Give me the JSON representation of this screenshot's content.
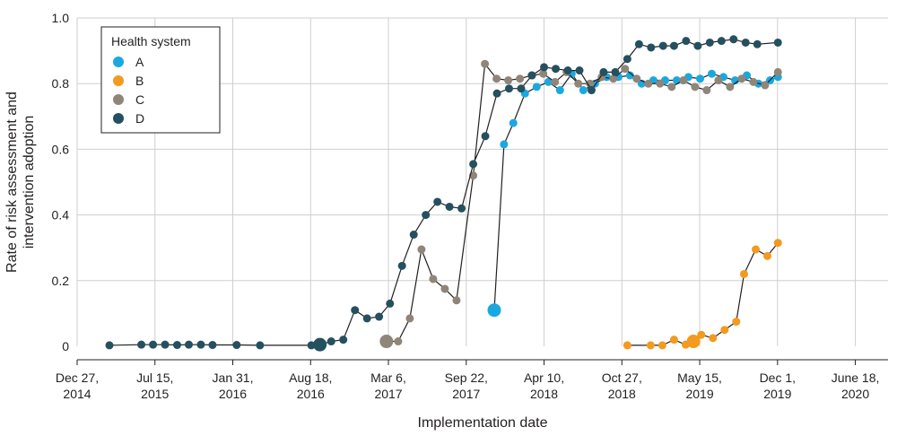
{
  "chart_data": {
    "type": "line",
    "xlabel": "Implementation date",
    "ylabel_lines": [
      "Rate of risk assessment and",
      "intervention adoption"
    ],
    "ylim": [
      0,
      1.0
    ],
    "yticks": [
      "0",
      "0.2",
      "0.4",
      "0.6",
      "0.8",
      "1.0"
    ],
    "yticks_values": [
      0,
      0.2,
      0.4,
      0.6,
      0.8,
      1.0
    ],
    "xlim": [
      "2014-12-27",
      "2020-09-10"
    ],
    "xticks": [
      {
        "date": "2014-12-27",
        "line1": "Dec 27,",
        "line2": "2014"
      },
      {
        "date": "2015-07-15",
        "line1": "Jul 15,",
        "line2": "2015"
      },
      {
        "date": "2016-01-31",
        "line1": "Jan 31,",
        "line2": "2016"
      },
      {
        "date": "2016-08-18",
        "line1": "Aug 18,",
        "line2": "2016"
      },
      {
        "date": "2017-03-06",
        "line1": "Mar 6,",
        "line2": "2017"
      },
      {
        "date": "2017-09-22",
        "line1": "Sep 22,",
        "line2": "2017"
      },
      {
        "date": "2018-04-10",
        "line1": "Apr 10,",
        "line2": "2018"
      },
      {
        "date": "2018-10-27",
        "line1": "Oct 27,",
        "line2": "2018"
      },
      {
        "date": "2019-05-15",
        "line1": "May 15,",
        "line2": "2019"
      },
      {
        "date": "2019-12-01",
        "line1": "Dec 1,",
        "line2": "2019"
      },
      {
        "date": "2020-06-18",
        "line1": "June 18,",
        "line2": "2020"
      }
    ],
    "legend": {
      "title": "Health system",
      "placement": "top-left"
    },
    "series": [
      {
        "name": "A",
        "color": "#1aa8e0",
        "big_point_index": 0,
        "points": [
          [
            "2017-12-03",
            0.11
          ],
          [
            "2017-12-28",
            0.615
          ],
          [
            "2018-01-21",
            0.68
          ],
          [
            "2018-02-20",
            0.77
          ],
          [
            "2018-03-22",
            0.79
          ],
          [
            "2018-04-21",
            0.805
          ],
          [
            "2018-05-21",
            0.78
          ],
          [
            "2018-06-20",
            0.83
          ],
          [
            "2018-07-20",
            0.78
          ],
          [
            "2018-08-19",
            0.8
          ],
          [
            "2018-09-18",
            0.82
          ],
          [
            "2018-10-18",
            0.82
          ],
          [
            "2018-11-17",
            0.825
          ],
          [
            "2018-12-17",
            0.8
          ],
          [
            "2019-01-16",
            0.81
          ],
          [
            "2019-02-15",
            0.81
          ],
          [
            "2019-03-17",
            0.81
          ],
          [
            "2019-04-16",
            0.82
          ],
          [
            "2019-05-16",
            0.815
          ],
          [
            "2019-06-15",
            0.83
          ],
          [
            "2019-07-15",
            0.82
          ],
          [
            "2019-08-14",
            0.81
          ],
          [
            "2019-09-13",
            0.825
          ],
          [
            "2019-10-13",
            0.8
          ],
          [
            "2019-11-12",
            0.81
          ],
          [
            "2019-12-02",
            0.82
          ]
        ]
      },
      {
        "name": "B",
        "color": "#f39a1f",
        "big_point_index": 5,
        "points": [
          [
            "2018-11-10",
            0.003
          ],
          [
            "2019-01-09",
            0.003
          ],
          [
            "2019-02-08",
            0.003
          ],
          [
            "2019-03-10",
            0.02
          ],
          [
            "2019-04-09",
            0.005
          ],
          [
            "2019-04-29",
            0.015
          ],
          [
            "2019-05-19",
            0.035
          ],
          [
            "2019-06-18",
            0.025
          ],
          [
            "2019-07-18",
            0.05
          ],
          [
            "2019-08-17",
            0.075
          ],
          [
            "2019-09-06",
            0.22
          ],
          [
            "2019-10-06",
            0.295
          ],
          [
            "2019-11-05",
            0.275
          ],
          [
            "2019-12-02",
            0.315
          ]
        ]
      },
      {
        "name": "C",
        "color": "#8f8579",
        "big_point_index": 0,
        "points": [
          [
            "2017-03-01",
            0.015
          ],
          [
            "2017-03-31",
            0.015
          ],
          [
            "2017-04-30",
            0.085
          ],
          [
            "2017-05-30",
            0.295
          ],
          [
            "2017-06-29",
            0.205
          ],
          [
            "2017-07-29",
            0.175
          ],
          [
            "2017-08-28",
            0.14
          ],
          [
            "2017-10-10",
            0.52
          ],
          [
            "2017-11-09",
            0.86
          ],
          [
            "2017-12-09",
            0.815
          ],
          [
            "2018-01-08",
            0.81
          ],
          [
            "2018-02-07",
            0.815
          ],
          [
            "2018-03-09",
            0.825
          ],
          [
            "2018-04-08",
            0.83
          ],
          [
            "2018-05-08",
            0.805
          ],
          [
            "2018-06-07",
            0.835
          ],
          [
            "2018-07-07",
            0.8
          ],
          [
            "2018-08-06",
            0.8
          ],
          [
            "2018-09-05",
            0.82
          ],
          [
            "2018-10-05",
            0.815
          ],
          [
            "2018-11-04",
            0.845
          ],
          [
            "2018-12-04",
            0.815
          ],
          [
            "2019-01-03",
            0.8
          ],
          [
            "2019-02-02",
            0.8
          ],
          [
            "2019-03-04",
            0.79
          ],
          [
            "2019-04-03",
            0.81
          ],
          [
            "2019-05-03",
            0.79
          ],
          [
            "2019-06-02",
            0.78
          ],
          [
            "2019-07-02",
            0.81
          ],
          [
            "2019-08-01",
            0.79
          ],
          [
            "2019-08-31",
            0.815
          ],
          [
            "2019-09-30",
            0.805
          ],
          [
            "2019-10-30",
            0.795
          ],
          [
            "2019-12-02",
            0.835
          ]
        ]
      },
      {
        "name": "D",
        "color": "#24505f",
        "big_point_index": 14,
        "points": [
          [
            "2015-03-20",
            0.003
          ],
          [
            "2015-06-10",
            0.005
          ],
          [
            "2015-07-10",
            0.005
          ],
          [
            "2015-08-10",
            0.005
          ],
          [
            "2015-09-10",
            0.004
          ],
          [
            "2015-10-10",
            0.005
          ],
          [
            "2015-11-10",
            0.005
          ],
          [
            "2015-12-10",
            0.004
          ],
          [
            "2016-02-10",
            0.004
          ],
          [
            "2016-04-10",
            0.003
          ],
          [
            "2016-08-20",
            0.003
          ],
          [
            "2016-09-10",
            0.004
          ],
          [
            "2016-10-10",
            0.015
          ],
          [
            "2016-11-10",
            0.02
          ],
          [
            "2016-09-11",
            0.005
          ],
          [
            "2016-12-10",
            0.11
          ],
          [
            "2017-01-10",
            0.085
          ],
          [
            "2017-02-10",
            0.09
          ],
          [
            "2017-03-10",
            0.13
          ],
          [
            "2017-04-10",
            0.245
          ],
          [
            "2017-05-10",
            0.34
          ],
          [
            "2017-06-10",
            0.4
          ],
          [
            "2017-07-10",
            0.44
          ],
          [
            "2017-08-10",
            0.425
          ],
          [
            "2017-09-10",
            0.42
          ],
          [
            "2017-10-10",
            0.555
          ],
          [
            "2017-11-10",
            0.64
          ],
          [
            "2017-12-10",
            0.77
          ],
          [
            "2018-01-10",
            0.785
          ],
          [
            "2018-02-10",
            0.785
          ],
          [
            "2018-03-10",
            0.825
          ],
          [
            "2018-04-10",
            0.85
          ],
          [
            "2018-05-10",
            0.845
          ],
          [
            "2018-06-10",
            0.84
          ],
          [
            "2018-07-10",
            0.84
          ],
          [
            "2018-08-10",
            0.78
          ],
          [
            "2018-09-10",
            0.835
          ],
          [
            "2018-10-10",
            0.835
          ],
          [
            "2018-11-10",
            0.875
          ],
          [
            "2018-12-10",
            0.92
          ],
          [
            "2019-01-10",
            0.91
          ],
          [
            "2019-02-10",
            0.915
          ],
          [
            "2019-03-10",
            0.915
          ],
          [
            "2019-04-10",
            0.93
          ],
          [
            "2019-05-10",
            0.915
          ],
          [
            "2019-06-10",
            0.925
          ],
          [
            "2019-07-10",
            0.93
          ],
          [
            "2019-08-10",
            0.935
          ],
          [
            "2019-09-10",
            0.925
          ],
          [
            "2019-10-10",
            0.92
          ],
          [
            "2019-12-02",
            0.925
          ]
        ]
      }
    ]
  }
}
